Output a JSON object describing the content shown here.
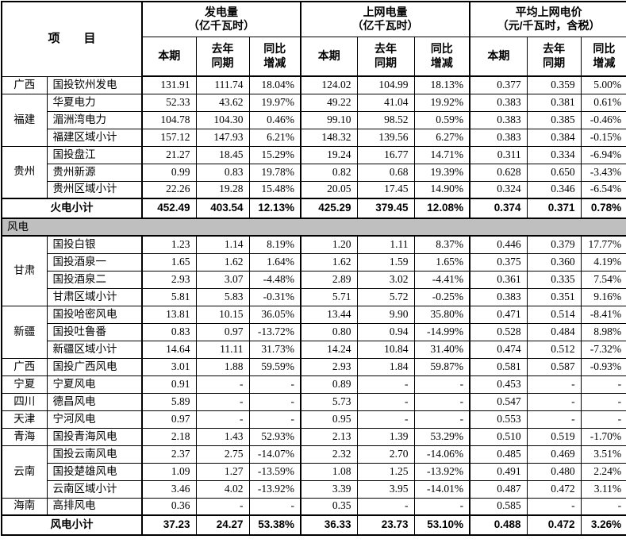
{
  "colors": {
    "section_row_bg": "#bfbfbf",
    "border": "#000000",
    "text": "#000000",
    "background": "#ffffff"
  },
  "table": {
    "project_header": "项　　目",
    "col_groups": [
      {
        "name": "发电量",
        "unit": "（亿千瓦时）"
      },
      {
        "name": "上网电量",
        "unit": "（亿千瓦时）"
      },
      {
        "name": "平均上网电价",
        "unit": "（元/千瓦时，含税）"
      }
    ],
    "sub_labels": [
      "本期",
      "去年\n同期",
      "同比\n增减"
    ],
    "sections": [
      {
        "name": "thermal",
        "rows": [
          {
            "region": "广西",
            "region_span": 1,
            "company": "国投钦州发电",
            "values": [
              "131.91",
              "111.74",
              "18.04%",
              "124.02",
              "104.99",
              "18.13%",
              "0.377",
              "0.359",
              "5.00%"
            ]
          },
          {
            "region": "福建",
            "region_span": 3,
            "company": "华夏电力",
            "values": [
              "52.33",
              "43.62",
              "19.97%",
              "49.22",
              "41.04",
              "19.92%",
              "0.383",
              "0.381",
              "0.61%"
            ]
          },
          {
            "region": "",
            "region_span": 0,
            "company": "湄洲湾电力",
            "values": [
              "104.78",
              "104.30",
              "0.46%",
              "99.10",
              "98.52",
              "0.59%",
              "0.383",
              "0.385",
              "-0.46%"
            ]
          },
          {
            "region": "",
            "region_span": 0,
            "company": "福建区域小计",
            "values": [
              "157.12",
              "147.93",
              "6.21%",
              "148.32",
              "139.56",
              "6.27%",
              "0.383",
              "0.384",
              "-0.15%"
            ]
          },
          {
            "region": "贵州",
            "region_span": 3,
            "company": "国投盘江",
            "values": [
              "21.27",
              "18.45",
              "15.29%",
              "19.24",
              "16.77",
              "14.71%",
              "0.311",
              "0.334",
              "-6.94%"
            ]
          },
          {
            "region": "",
            "region_span": 0,
            "company": "贵州新源",
            "values": [
              "0.99",
              "0.83",
              "19.78%",
              "0.82",
              "0.68",
              "19.39%",
              "0.628",
              "0.650",
              "-3.43%"
            ]
          },
          {
            "region": "",
            "region_span": 0,
            "company": "贵州区域小计",
            "values": [
              "22.26",
              "19.28",
              "15.48%",
              "20.05",
              "17.45",
              "14.90%",
              "0.324",
              "0.346",
              "-6.54%"
            ]
          }
        ],
        "subtotal": {
          "label": "火电小计",
          "values": [
            "452.49",
            "403.54",
            "12.13%",
            "425.29",
            "379.45",
            "12.08%",
            "0.374",
            "0.371",
            "0.78%"
          ]
        }
      },
      {
        "name": "wind",
        "section_label": "风电",
        "rows": [
          {
            "region": "甘肃",
            "region_span": 4,
            "company": "国投白银",
            "values": [
              "1.23",
              "1.14",
              "8.19%",
              "1.20",
              "1.11",
              "8.37%",
              "0.446",
              "0.379",
              "17.77%"
            ]
          },
          {
            "region": "",
            "region_span": 0,
            "company": "国投酒泉一",
            "values": [
              "1.65",
              "1.62",
              "1.64%",
              "1.62",
              "1.59",
              "1.65%",
              "0.375",
              "0.360",
              "4.19%"
            ]
          },
          {
            "region": "",
            "region_span": 0,
            "company": "国投酒泉二",
            "values": [
              "2.93",
              "3.07",
              "-4.48%",
              "2.89",
              "3.02",
              "-4.41%",
              "0.361",
              "0.335",
              "7.54%"
            ]
          },
          {
            "region": "",
            "region_span": 0,
            "company": "甘肃区域小计",
            "values": [
              "5.81",
              "5.83",
              "-0.31%",
              "5.71",
              "5.72",
              "-0.25%",
              "0.383",
              "0.351",
              "9.16%"
            ]
          },
          {
            "region": "新疆",
            "region_span": 3,
            "company": "国投哈密风电",
            "values": [
              "13.81",
              "10.15",
              "36.05%",
              "13.44",
              "9.90",
              "35.80%",
              "0.471",
              "0.514",
              "-8.41%"
            ]
          },
          {
            "region": "",
            "region_span": 0,
            "company": "国投吐鲁番",
            "values": [
              "0.83",
              "0.97",
              "-13.72%",
              "0.80",
              "0.94",
              "-14.99%",
              "0.528",
              "0.484",
              "8.98%"
            ]
          },
          {
            "region": "",
            "region_span": 0,
            "company": "新疆区域小计",
            "values": [
              "14.64",
              "11.11",
              "31.73%",
              "14.24",
              "10.84",
              "31.40%",
              "0.474",
              "0.512",
              "-7.32%"
            ]
          },
          {
            "region": "广西",
            "region_span": 1,
            "company": "国投广西风电",
            "values": [
              "3.01",
              "1.88",
              "59.59%",
              "2.93",
              "1.84",
              "59.87%",
              "0.581",
              "0.587",
              "-0.93%"
            ]
          },
          {
            "region": "宁夏",
            "region_span": 1,
            "company": "宁夏风电",
            "values": [
              "0.91",
              "-",
              "-",
              "0.89",
              "-",
              "-",
              "0.453",
              "-",
              "-"
            ]
          },
          {
            "region": "四川",
            "region_span": 1,
            "company": "德昌风电",
            "values": [
              "5.89",
              "-",
              "-",
              "5.73",
              "-",
              "-",
              "0.547",
              "-",
              "-"
            ]
          },
          {
            "region": "天津",
            "region_span": 1,
            "company": "宁河风电",
            "values": [
              "0.97",
              "-",
              "-",
              "0.95",
              "-",
              "-",
              "0.553",
              "-",
              "-"
            ]
          },
          {
            "region": "青海",
            "region_span": 1,
            "company": "国投青海风电",
            "values": [
              "2.18",
              "1.43",
              "52.93%",
              "2.13",
              "1.39",
              "53.29%",
              "0.510",
              "0.519",
              "-1.70%"
            ]
          },
          {
            "region": "云南",
            "region_span": 3,
            "company": "国投云南风电",
            "values": [
              "2.37",
              "2.75",
              "-14.07%",
              "2.32",
              "2.70",
              "-14.06%",
              "0.485",
              "0.469",
              "3.51%"
            ]
          },
          {
            "region": "",
            "region_span": 0,
            "company": "国投楚雄风电",
            "values": [
              "1.09",
              "1.27",
              "-13.59%",
              "1.08",
              "1.25",
              "-13.92%",
              "0.491",
              "0.480",
              "2.24%"
            ]
          },
          {
            "region": "",
            "region_span": 0,
            "company": "云南区域小计",
            "values": [
              "3.46",
              "4.02",
              "-13.92%",
              "3.39",
              "3.95",
              "-14.01%",
              "0.487",
              "0.472",
              "3.11%"
            ]
          },
          {
            "region": "海南",
            "region_span": 1,
            "company": "高排风电",
            "values": [
              "0.36",
              "-",
              "-",
              "0.35",
              "-",
              "-",
              "0.585",
              "-",
              "-"
            ]
          }
        ],
        "subtotal": {
          "label": "风电小计",
          "values": [
            "37.23",
            "24.27",
            "53.38%",
            "36.33",
            "23.73",
            "53.10%",
            "0.488",
            "0.472",
            "3.26%"
          ]
        }
      }
    ]
  }
}
